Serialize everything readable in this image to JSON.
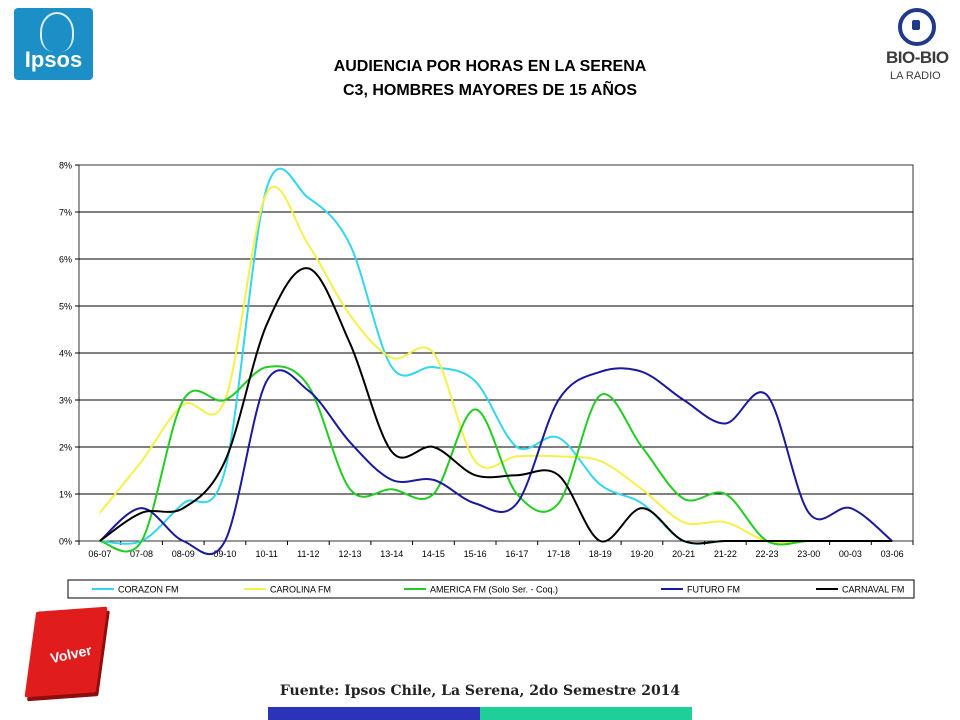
{
  "header": {
    "logo_left": "Ipsos",
    "logo_right_line1": "BIO-BIO",
    "logo_right_line2": "LA RADIO",
    "title_line1": "AUDIENCIA POR HORAS EN LA SERENA",
    "title_line2": "C3, HOMBRES MAYORES DE 15 AÑOS"
  },
  "footer": {
    "button_label": "Volver",
    "source": "Fuente: Ipsos Chile, La Serena, 2do Semestre 2014",
    "bar_colors": [
      "#2b33b8",
      "#1fcf9a"
    ]
  },
  "chart_data": {
    "type": "line",
    "categories": [
      "06-07",
      "07-08",
      "08-09",
      "09-10",
      "10-11",
      "11-12",
      "12-13",
      "13-14",
      "14-15",
      "15-16",
      "16-17",
      "17-18",
      "18-19",
      "19-20",
      "20-21",
      "21-22",
      "22-23",
      "23-00",
      "00-03",
      "03-06"
    ],
    "ylim": [
      0,
      8
    ],
    "yticks": [
      "0%",
      "1%",
      "2%",
      "3%",
      "4%",
      "5%",
      "6%",
      "7%",
      "8%"
    ],
    "grid": true,
    "legend_position": "bottom",
    "series": [
      {
        "name": "CORAZON FM",
        "color": "#33d6ee",
        "values": [
          0,
          0,
          0.8,
          1.5,
          7.5,
          7.3,
          6.3,
          3.7,
          3.7,
          3.4,
          2.0,
          2.2,
          1.2,
          0.8,
          0,
          0,
          0,
          0,
          0,
          0
        ]
      },
      {
        "name": "CAROLINA FM",
        "color": "#f5f04a",
        "values": [
          0.6,
          1.7,
          2.9,
          3.0,
          7.4,
          6.3,
          4.8,
          3.9,
          4.0,
          1.7,
          1.8,
          1.8,
          1.7,
          1.1,
          0.4,
          0.4,
          0,
          0,
          0,
          0
        ]
      },
      {
        "name": "AMERICA FM  (Solo Ser. - Coq.)",
        "color": "#22cc22",
        "values": [
          0,
          0,
          3.0,
          3.0,
          3.7,
          3.3,
          1.1,
          1.1,
          1.0,
          2.8,
          1.0,
          0.8,
          3.1,
          2.0,
          0.9,
          1.0,
          0,
          0,
          0,
          0
        ]
      },
      {
        "name": "FUTURO FM",
        "color": "#1a1a9c",
        "values": [
          0,
          0.7,
          0,
          0,
          3.4,
          3.2,
          2.1,
          1.3,
          1.3,
          0.8,
          0.8,
          3.0,
          3.6,
          3.6,
          3.0,
          2.5,
          3.1,
          0.6,
          0.7,
          0
        ]
      },
      {
        "name": "CARNAVAL FM",
        "color": "#000000",
        "values": [
          0,
          0.6,
          0.7,
          1.7,
          4.6,
          5.8,
          4.2,
          1.9,
          2.0,
          1.4,
          1.4,
          1.4,
          0,
          0.7,
          0,
          0,
          0,
          0,
          0,
          0
        ]
      }
    ]
  }
}
